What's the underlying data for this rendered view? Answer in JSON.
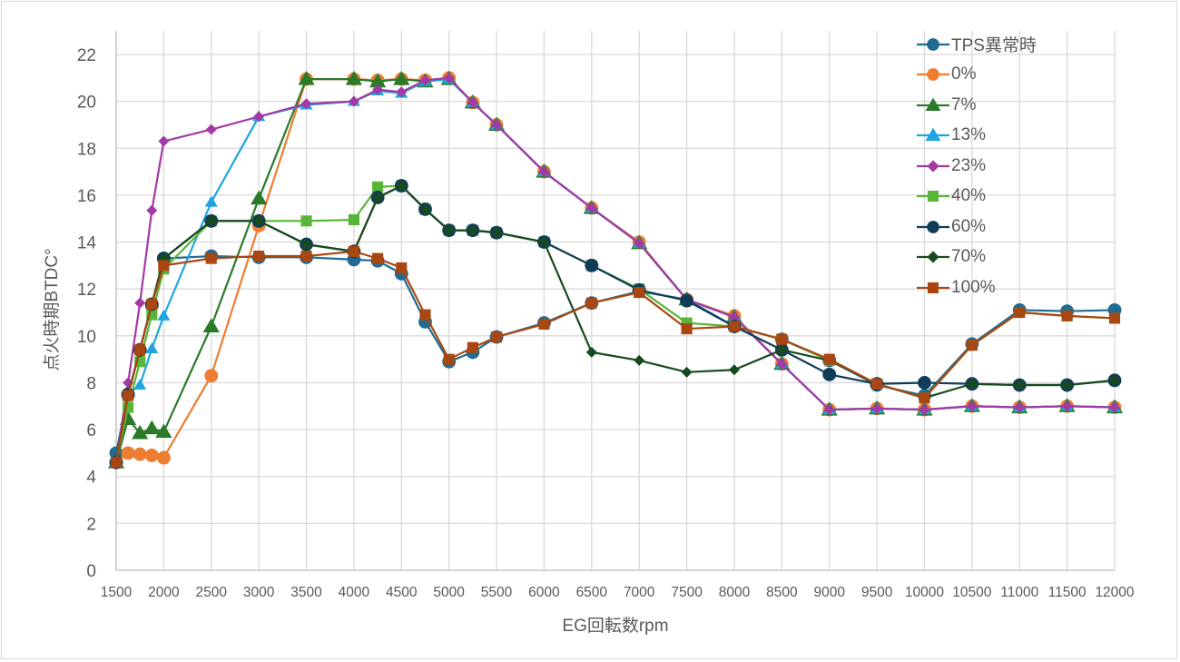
{
  "chart_data": {
    "type": "line",
    "title": "",
    "xlabel": "EG回転数rpm",
    "ylabel": "点火時期BTDC°",
    "xlim": [
      1500,
      12000
    ],
    "ylim": [
      0,
      22
    ],
    "x_ticks": [
      1500,
      2000,
      2500,
      3000,
      3500,
      4000,
      4500,
      5000,
      5500,
      6000,
      6500,
      7000,
      7500,
      8000,
      8500,
      9000,
      9500,
      10000,
      10500,
      11000,
      11500,
      12000
    ],
    "y_ticks": [
      0,
      2,
      4,
      6,
      8,
      10,
      12,
      14,
      16,
      18,
      20,
      22
    ],
    "grid": true,
    "legend_position": "upper-right-inside",
    "x": [
      1500,
      1625,
      1750,
      1875,
      2000,
      2500,
      3000,
      3500,
      4000,
      4250,
      4500,
      4750,
      5000,
      5250,
      5500,
      6000,
      6500,
      7000,
      7500,
      8000,
      8500,
      9000,
      9500,
      10000,
      10500,
      11000,
      11500,
      12000
    ],
    "series": [
      {
        "name": "TPS異常時",
        "color": "#1f6b91",
        "marker": "circle",
        "values": [
          5.0,
          7.5,
          9.4,
          11.3,
          13.3,
          13.4,
          13.35,
          13.35,
          13.25,
          13.2,
          12.65,
          10.6,
          8.9,
          9.3,
          9.95,
          10.55,
          11.4,
          11.9,
          11.55,
          10.4,
          9.85,
          8.95,
          7.9,
          7.45,
          9.65,
          11.1,
          11.05,
          11.1
        ]
      },
      {
        "name": "0%",
        "color": "#ed7d31",
        "marker": "circle",
        "values": [
          4.6,
          5.0,
          4.95,
          4.9,
          4.8,
          8.3,
          14.7,
          20.95,
          20.95,
          20.9,
          20.95,
          20.9,
          21.0,
          19.95,
          19.0,
          17.0,
          15.45,
          14.0,
          11.55,
          10.85,
          8.8,
          6.85,
          6.9,
          6.85,
          7.0,
          6.95,
          7.0,
          6.95
        ]
      },
      {
        "name": "7%",
        "color": "#2a7a2a",
        "marker": "triangle",
        "values": [
          4.6,
          6.45,
          5.85,
          6.05,
          5.9,
          10.4,
          15.85,
          20.95,
          20.95,
          20.85,
          20.95,
          20.85,
          20.95,
          19.95,
          19.0,
          17.0,
          15.45,
          13.95,
          11.55,
          10.8,
          8.8,
          6.85,
          6.9,
          6.85,
          7.0,
          6.95,
          7.0,
          6.95
        ]
      },
      {
        "name": "13%",
        "color": "#1ea5e0",
        "marker": "triangle",
        "values": [
          4.6,
          7.5,
          7.9,
          9.45,
          10.85,
          15.7,
          19.35,
          19.85,
          20.0,
          20.45,
          20.35,
          20.85,
          20.95,
          19.95,
          19.0,
          17.0,
          15.45,
          13.95,
          11.55,
          10.8,
          8.8,
          6.85,
          6.9,
          6.85,
          7.0,
          6.95,
          7.0,
          6.95
        ]
      },
      {
        "name": "23%",
        "color": "#a23aa6",
        "marker": "diamond",
        "values": [
          4.6,
          8.0,
          11.4,
          15.35,
          18.3,
          18.8,
          19.35,
          19.9,
          20.0,
          20.5,
          20.4,
          20.9,
          21.0,
          19.95,
          19.0,
          17.0,
          15.45,
          13.95,
          11.55,
          10.8,
          8.8,
          6.85,
          6.9,
          6.85,
          7.0,
          6.95,
          7.0,
          6.95
        ]
      },
      {
        "name": "40%",
        "color": "#58b538",
        "marker": "square",
        "values": [
          4.6,
          6.95,
          8.9,
          10.9,
          12.85,
          14.9,
          14.9,
          14.9,
          14.95,
          16.35,
          16.4,
          15.4,
          14.5,
          14.5,
          14.4,
          14.0,
          13.0,
          12.0,
          10.55,
          10.4,
          9.85,
          8.95,
          7.95,
          7.35,
          9.6,
          11.0,
          10.85,
          10.75
        ]
      },
      {
        "name": "60%",
        "color": "#113c58",
        "marker": "circle",
        "values": [
          4.6,
          7.5,
          9.4,
          11.35,
          13.3,
          14.9,
          14.9,
          13.9,
          13.6,
          15.9,
          16.4,
          15.4,
          14.5,
          14.5,
          14.4,
          14.0,
          13.0,
          11.95,
          11.5,
          10.4,
          9.4,
          8.35,
          7.95,
          8.0,
          7.95,
          7.9,
          7.9,
          8.1
        ]
      },
      {
        "name": "70%",
        "color": "#174a1f",
        "marker": "diamond",
        "values": [
          4.6,
          7.5,
          9.4,
          11.35,
          13.3,
          14.9,
          14.9,
          13.9,
          13.6,
          15.9,
          16.4,
          15.4,
          14.5,
          14.5,
          14.4,
          14.0,
          9.3,
          8.95,
          8.45,
          8.55,
          9.4,
          8.95,
          7.95,
          7.35,
          7.95,
          7.9,
          7.9,
          8.1
        ]
      },
      {
        "name": "100%",
        "color": "#a94712",
        "marker": "square",
        "values": [
          4.6,
          7.45,
          9.4,
          11.35,
          13.0,
          13.3,
          13.4,
          13.4,
          13.6,
          13.3,
          12.9,
          10.9,
          9.0,
          9.5,
          9.95,
          10.5,
          11.4,
          11.85,
          10.3,
          10.4,
          9.85,
          9.0,
          7.95,
          7.35,
          9.6,
          11.0,
          10.85,
          10.75
        ]
      }
    ]
  },
  "axes": {
    "x_title": "EG回転数rpm",
    "y_title": "点火時期BTDC°"
  },
  "legend": {
    "items": [
      "TPS異常時",
      "0%",
      "7%",
      "13%",
      "23%",
      "40%",
      "60%",
      "70%",
      "100%"
    ]
  }
}
